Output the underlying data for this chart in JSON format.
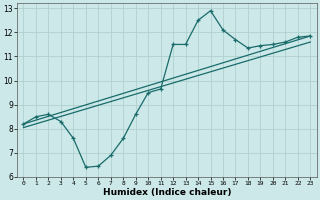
{
  "xlabel": "Humidex (Indice chaleur)",
  "bg_color": "#cce8e8",
  "grid_color": "#b0d0d0",
  "line_color": "#1a6b6b",
  "x_data": [
    0,
    1,
    2,
    3,
    4,
    5,
    6,
    7,
    8,
    9,
    10,
    11,
    12,
    13,
    14,
    15,
    16,
    17,
    18,
    19,
    20,
    21,
    22,
    23
  ],
  "y_main": [
    8.2,
    8.5,
    8.6,
    8.3,
    7.6,
    6.4,
    6.45,
    6.9,
    7.6,
    8.6,
    9.5,
    9.65,
    11.5,
    11.5,
    12.5,
    12.9,
    12.1,
    11.7,
    11.35,
    11.45,
    11.5,
    11.6,
    11.8,
    11.85
  ],
  "trend1_x": [
    0,
    23
  ],
  "trend1_y": [
    8.2,
    11.85
  ],
  "trend2_x": [
    0,
    23
  ],
  "trend2_y": [
    8.05,
    11.6
  ],
  "xlim": [
    -0.5,
    23.5
  ],
  "ylim": [
    6,
    13.2
  ],
  "xticks": [
    0,
    1,
    2,
    3,
    4,
    5,
    6,
    7,
    8,
    9,
    10,
    11,
    12,
    13,
    14,
    15,
    16,
    17,
    18,
    19,
    20,
    21,
    22,
    23
  ],
  "yticks": [
    6,
    7,
    8,
    9,
    10,
    11,
    12,
    13
  ]
}
